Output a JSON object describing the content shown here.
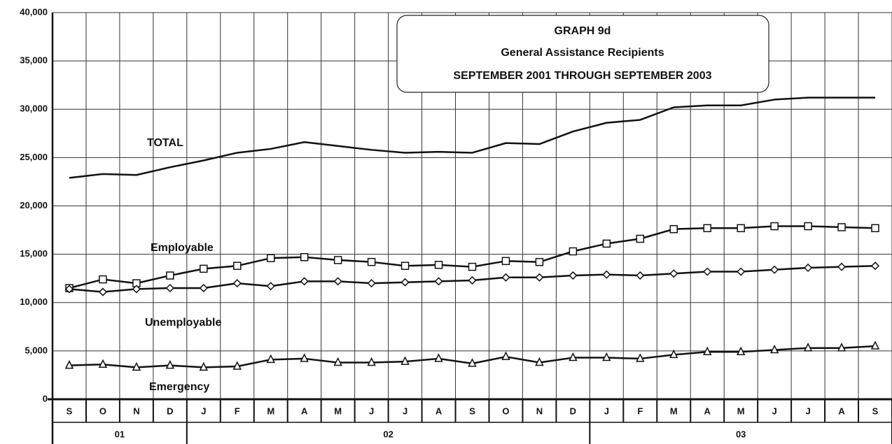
{
  "chart_data": {
    "type": "line",
    "title": "GRAPH 9d",
    "subtitle": "General Assistance Recipients",
    "subtitle2": "SEPTEMBER 2001 THROUGH SEPTEMBER 2003",
    "categories": [
      "S",
      "O",
      "N",
      "D",
      "J",
      "F",
      "M",
      "A",
      "M",
      "J",
      "J",
      "A",
      "S",
      "O",
      "N",
      "D",
      "J",
      "F",
      "M",
      "A",
      "M",
      "J",
      "J",
      "A",
      "S"
    ],
    "year_groups": [
      {
        "label": "01",
        "span": 4
      },
      {
        "label": "02",
        "span": 12
      },
      {
        "label": "03",
        "span": 9
      }
    ],
    "series": [
      {
        "name": "TOTAL",
        "color": "#111111",
        "marker": "none",
        "values": [
          22900,
          23300,
          23200,
          24000,
          24700,
          25500,
          25900,
          26600,
          26200,
          25800,
          25500,
          25600,
          25500,
          26500,
          26400,
          27700,
          28600,
          28900,
          30200,
          30400,
          30400,
          31000,
          31200,
          31200,
          31200
        ]
      },
      {
        "name": "Employable",
        "color": "#111111",
        "marker": "square",
        "values": [
          11500,
          12400,
          12000,
          12800,
          13500,
          13800,
          14600,
          14700,
          14400,
          14200,
          13800,
          13900,
          13700,
          14300,
          14200,
          15300,
          16100,
          16600,
          17600,
          17700,
          17700,
          17900,
          17900,
          17800,
          17700
        ]
      },
      {
        "name": "Unemployable",
        "color": "#111111",
        "marker": "diamond",
        "values": [
          11400,
          11100,
          11400,
          11500,
          11500,
          12000,
          11700,
          12200,
          12200,
          12000,
          12100,
          12200,
          12300,
          12600,
          12600,
          12800,
          12900,
          12800,
          13000,
          13200,
          13200,
          13400,
          13600,
          13700,
          13800
        ]
      },
      {
        "name": "Emergency",
        "color": "#111111",
        "marker": "triangle",
        "values": [
          3500,
          3600,
          3300,
          3500,
          3300,
          3400,
          4100,
          4200,
          3800,
          3800,
          3900,
          4200,
          3700,
          4400,
          3800,
          4300,
          4300,
          4200,
          4600,
          4900,
          4900,
          5100,
          5300,
          5300,
          5500
        ]
      }
    ],
    "ylim": [
      0,
      40000
    ],
    "yticks": [
      0,
      {
        "value": 5000,
        "label": "5,000"
      },
      {
        "value": 10000,
        "label": "10,000"
      },
      {
        "value": 15000,
        "label": "15,000"
      },
      {
        "value": 20000,
        "label": "20,000"
      },
      {
        "value": 25000,
        "label": "25,000"
      },
      {
        "value": 30000,
        "label": "30,000"
      },
      {
        "value": 35000,
        "label": "35,000"
      },
      {
        "value": 40000,
        "label": "40,000"
      }
    ],
    "grid": true
  }
}
